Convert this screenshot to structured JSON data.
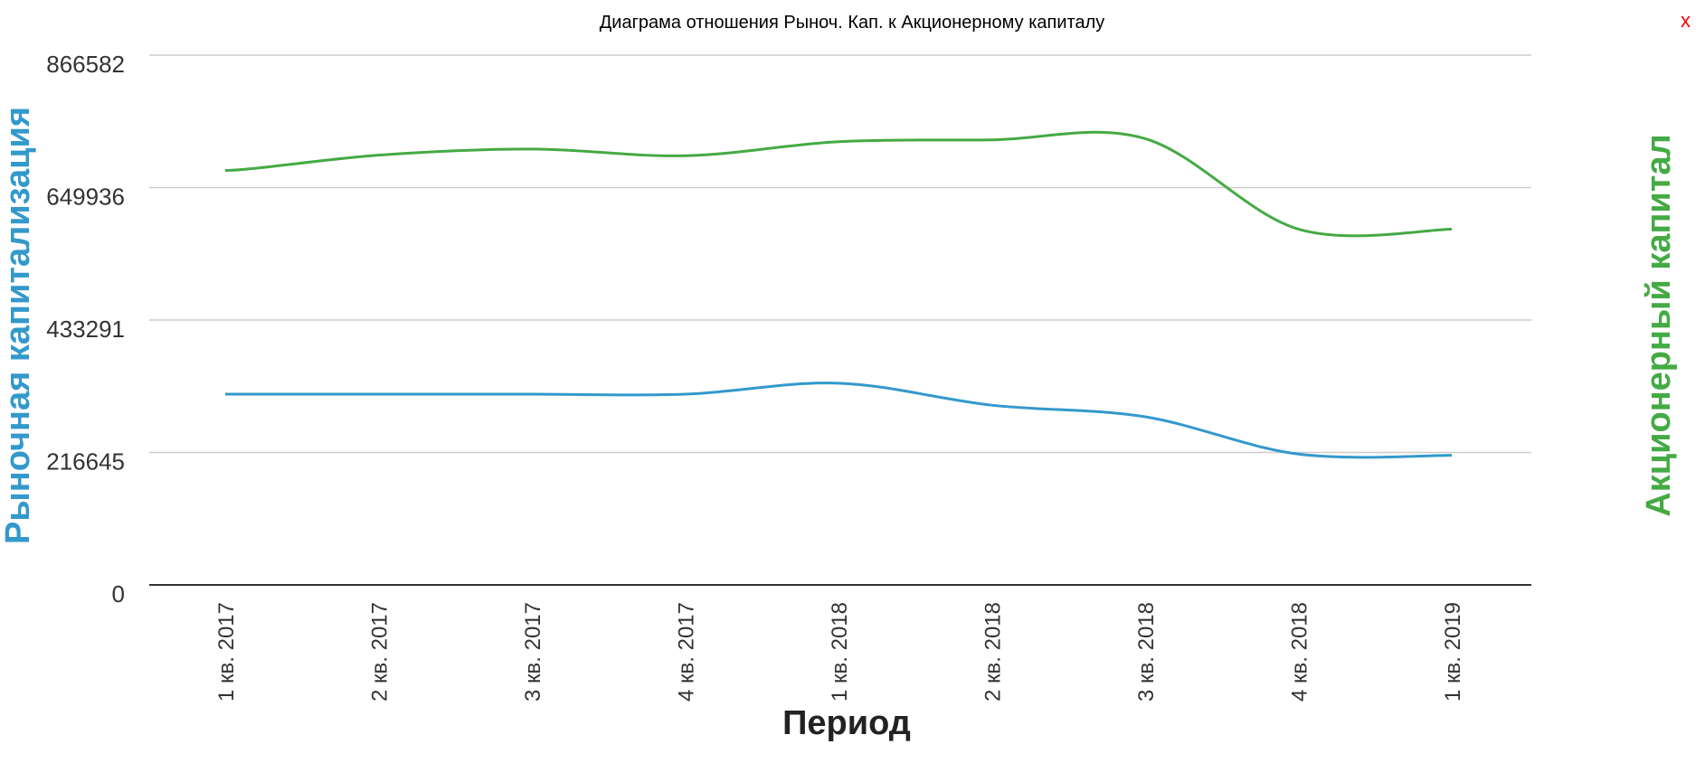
{
  "close_label": "x",
  "chart_data": {
    "type": "line",
    "title": "Диаграма отношения Рыноч. Кап. к Акционерному капиталу",
    "xlabel": "Период",
    "ylabel": "Рыночная капитализация",
    "ylabel_right": "Акционерный капитал",
    "categories": [
      "1 кв. 2017",
      "2 кв. 2017",
      "3 кв. 2017",
      "4 кв. 2017",
      "1 кв. 2018",
      "2 кв. 2018",
      "3 кв. 2018",
      "4 кв. 2018",
      "1 кв. 2019"
    ],
    "y_ticks": [
      "866582",
      "649936",
      "433291",
      "216645",
      "0"
    ],
    "ylim": [
      0,
      866582
    ],
    "grid": true,
    "series": [
      {
        "name": "Рыночная капитализация",
        "color": "#3399cc",
        "values": [
          312000,
          312000,
          312000,
          312000,
          330000,
          294000,
          275000,
          214000,
          212000
        ]
      },
      {
        "name": "Акционерный капитал",
        "color": "#44aa44",
        "values": [
          678000,
          703000,
          713000,
          702000,
          725000,
          728000,
          730000,
          582000,
          582000
        ]
      }
    ]
  }
}
